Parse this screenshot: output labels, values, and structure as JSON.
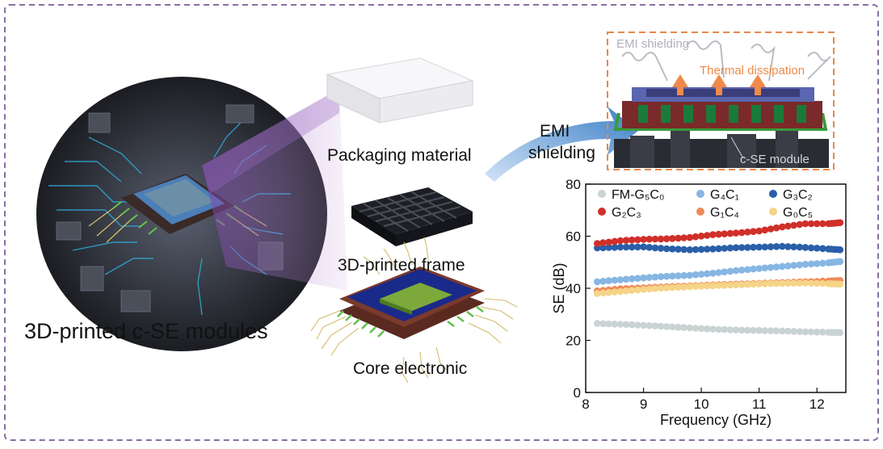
{
  "labels": {
    "modules": "3D-printed c-SE modules",
    "packaging": "Packaging material",
    "frame": "3D-printed frame",
    "core": "Core electronic",
    "arrow_line1": "EMI",
    "arrow_line2": "shielding"
  },
  "inset": {
    "emi": "EMI shielding",
    "thermal": "Thermal dissipation",
    "module": "c-SE module"
  },
  "colors": {
    "border": "#8a6fa0",
    "frame_dash": "#e8874a",
    "arrow": "#4d8fd0"
  },
  "chart_data": {
    "type": "scatter",
    "xlabel": "Frequency (GHz)",
    "ylabel": "SE (dB)",
    "xlim": [
      8,
      12.5
    ],
    "ylim": [
      0,
      80
    ],
    "xticks": [
      "8",
      "9",
      "10",
      "11",
      "12"
    ],
    "yticks": [
      "0",
      "20",
      "40",
      "60",
      "80"
    ],
    "legend_position": "top",
    "series": [
      {
        "name": "FM-G₅C₀",
        "color": "#c9d3d3",
        "points": [
          [
            8.2,
            26.5
          ],
          [
            8.6,
            26.2
          ],
          [
            9.0,
            25.8
          ],
          [
            9.4,
            25.3
          ],
          [
            9.8,
            24.8
          ],
          [
            10.2,
            24.3
          ],
          [
            10.6,
            24.0
          ],
          [
            11.0,
            23.8
          ],
          [
            11.4,
            23.6
          ],
          [
            11.8,
            23.3
          ],
          [
            12.2,
            23.1
          ],
          [
            12.4,
            23.0
          ]
        ]
      },
      {
        "name": "G₄C₁",
        "color": "#86b6e2",
        "points": [
          [
            8.2,
            42.5
          ],
          [
            8.6,
            43.3
          ],
          [
            9.0,
            44.0
          ],
          [
            9.4,
            44.6
          ],
          [
            9.8,
            45.0
          ],
          [
            10.2,
            45.8
          ],
          [
            10.6,
            46.8
          ],
          [
            11.0,
            47.6
          ],
          [
            11.4,
            48.4
          ],
          [
            11.8,
            49.2
          ],
          [
            12.2,
            49.8
          ],
          [
            12.4,
            50.3
          ]
        ]
      },
      {
        "name": "G₃C₂",
        "color": "#2a5fa8",
        "points": [
          [
            8.2,
            55.5
          ],
          [
            8.6,
            55.8
          ],
          [
            9.0,
            55.9
          ],
          [
            9.4,
            55.2
          ],
          [
            9.8,
            54.8
          ],
          [
            10.2,
            55.1
          ],
          [
            10.6,
            55.6
          ],
          [
            11.0,
            55.8
          ],
          [
            11.4,
            56.1
          ],
          [
            11.8,
            55.7
          ],
          [
            12.2,
            55.1
          ],
          [
            12.4,
            54.8
          ]
        ]
      },
      {
        "name": "G₂C₃",
        "color": "#d02f2a",
        "points": [
          [
            8.2,
            57.2
          ],
          [
            8.6,
            58.3
          ],
          [
            9.0,
            58.8
          ],
          [
            9.4,
            59.0
          ],
          [
            9.8,
            59.5
          ],
          [
            10.2,
            60.6
          ],
          [
            10.6,
            61.2
          ],
          [
            11.0,
            62.0
          ],
          [
            11.4,
            63.6
          ],
          [
            11.8,
            64.8
          ],
          [
            12.2,
            64.8
          ],
          [
            12.4,
            65.2
          ]
        ]
      },
      {
        "name": "G₁C₄",
        "color": "#ee8a58",
        "points": [
          [
            8.2,
            39.0
          ],
          [
            8.6,
            39.8
          ],
          [
            9.0,
            40.2
          ],
          [
            9.4,
            40.6
          ],
          [
            9.8,
            40.9
          ],
          [
            10.2,
            41.3
          ],
          [
            10.6,
            41.6
          ],
          [
            11.0,
            41.9
          ],
          [
            11.4,
            42.2
          ],
          [
            11.8,
            42.5
          ],
          [
            12.2,
            42.8
          ],
          [
            12.4,
            43.0
          ]
        ]
      },
      {
        "name": "G₀C₅",
        "color": "#f5d488",
        "points": [
          [
            8.2,
            38.0
          ],
          [
            8.6,
            38.8
          ],
          [
            9.0,
            39.6
          ],
          [
            9.4,
            40.2
          ],
          [
            9.8,
            40.6
          ],
          [
            10.2,
            41.0
          ],
          [
            10.6,
            41.3
          ],
          [
            11.0,
            41.7
          ],
          [
            11.4,
            41.9
          ],
          [
            11.8,
            42.0
          ],
          [
            12.2,
            41.8
          ],
          [
            12.4,
            41.6
          ]
        ]
      }
    ]
  }
}
